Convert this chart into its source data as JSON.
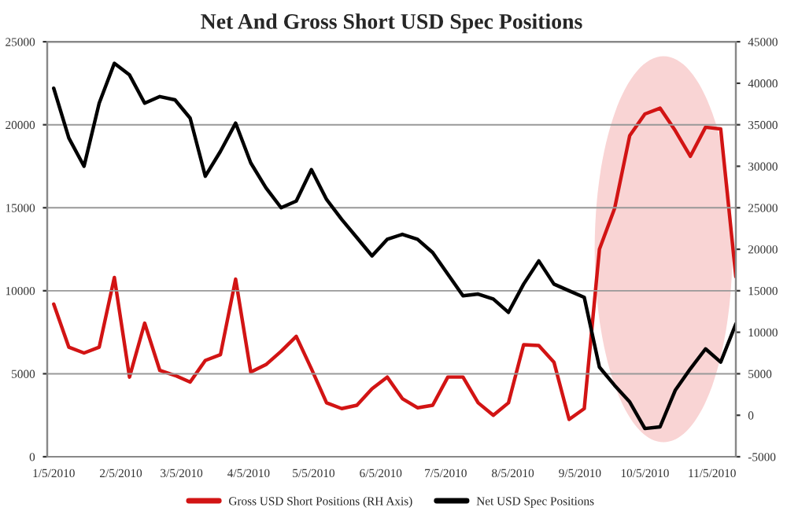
{
  "chart_data": {
    "type": "line",
    "title": "Net And Gross Short USD Spec Positions",
    "x": [
      "2010-01-05",
      "2010-01-12",
      "2010-01-19",
      "2010-01-26",
      "2010-02-02",
      "2010-02-09",
      "2010-02-16",
      "2010-02-23",
      "2010-03-02",
      "2010-03-09",
      "2010-03-16",
      "2010-03-23",
      "2010-03-30",
      "2010-04-06",
      "2010-04-13",
      "2010-04-20",
      "2010-04-27",
      "2010-05-04",
      "2010-05-11",
      "2010-05-18",
      "2010-05-25",
      "2010-06-01",
      "2010-06-08",
      "2010-06-15",
      "2010-06-22",
      "2010-06-29",
      "2010-07-06",
      "2010-07-13",
      "2010-07-20",
      "2010-07-27",
      "2010-08-03",
      "2010-08-10",
      "2010-08-17",
      "2010-08-24",
      "2010-08-31",
      "2010-09-07",
      "2010-09-14",
      "2010-09-21",
      "2010-09-28",
      "2010-10-05",
      "2010-10-12",
      "2010-10-19",
      "2010-10-26",
      "2010-11-02",
      "2010-11-09",
      "2010-11-16"
    ],
    "series": [
      {
        "name": "Gross USD Short Positions (RH Axis)",
        "color": "#d21414",
        "axis": "y2",
        "values": [
          13400,
          8200,
          7500,
          8200,
          16600,
          4600,
          11100,
          5400,
          4800,
          4000,
          6600,
          7300,
          16400,
          5200,
          6100,
          7700,
          9500,
          5600,
          1500,
          800,
          1200,
          3200,
          4600,
          2000,
          900,
          1200,
          4600,
          4600,
          1500,
          0,
          1500,
          8500,
          8400,
          6400,
          -500,
          800,
          20000,
          24900,
          33700,
          36300,
          37000,
          34300,
          31200,
          34700,
          34500,
          16700
        ]
      },
      {
        "name": "Net USD Spec Positions",
        "color": "#000000",
        "values": [
          22200,
          19200,
          17500,
          21300,
          23700,
          23000,
          21300,
          21700,
          21500,
          20400,
          16900,
          18400,
          20100,
          17700,
          16200,
          15000,
          15400,
          17300,
          15500,
          14300,
          13200,
          12100,
          13100,
          13400,
          13100,
          12300,
          11000,
          9700,
          9800,
          9500,
          8700,
          10400,
          11800,
          10400,
          10000,
          9600,
          5400,
          4300,
          3300,
          1700,
          1800,
          4000,
          5300,
          6500,
          5700,
          8000
        ]
      }
    ],
    "xlim": [
      "2010-01-02",
      "2010-11-16"
    ],
    "xticks": [
      {
        "value": "2010-01-05",
        "label": "1/5/2010"
      },
      {
        "value": "2010-02-05",
        "label": "2/5/2010"
      },
      {
        "value": "2010-03-05",
        "label": "3/5/2010"
      },
      {
        "value": "2010-04-05",
        "label": "4/5/2010"
      },
      {
        "value": "2010-05-05",
        "label": "5/5/2010"
      },
      {
        "value": "2010-06-05",
        "label": "6/5/2010"
      },
      {
        "value": "2010-07-05",
        "label": "7/5/2010"
      },
      {
        "value": "2010-08-05",
        "label": "8/5/2010"
      },
      {
        "value": "2010-09-05",
        "label": "9/5/2010"
      },
      {
        "value": "2010-10-05",
        "label": "10/5/2010"
      },
      {
        "value": "2010-11-05",
        "label": "11/5/2010"
      }
    ],
    "ylim": [
      0,
      25000
    ],
    "yticks": [
      0,
      5000,
      10000,
      15000,
      20000,
      25000
    ],
    "y2lim": [
      -5000,
      45000
    ],
    "y2ticks": [
      -5000,
      0,
      5000,
      10000,
      15000,
      20000,
      25000,
      30000,
      35000,
      40000,
      45000
    ],
    "grid": "y",
    "legend": "bottom",
    "marker": "none",
    "line_style": "solid"
  }
}
